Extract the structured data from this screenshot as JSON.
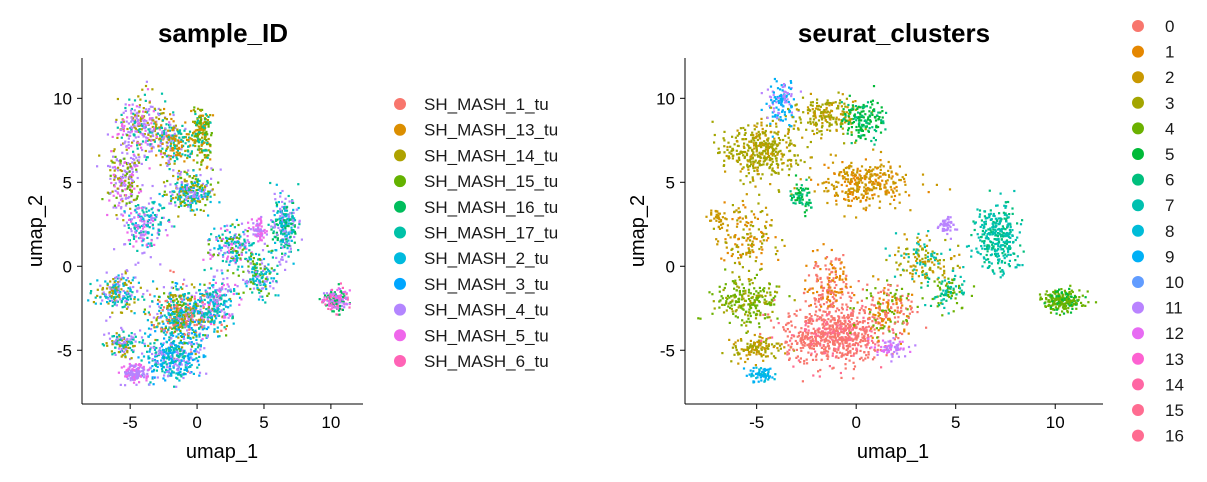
{
  "chart_data": [
    {
      "type": "scatter",
      "title": "sample_ID",
      "xlabel": "umap_1",
      "ylabel": "umap_2",
      "xlim": [
        -8.6,
        12.4
      ],
      "ylim": [
        -8.2,
        12.4
      ],
      "xticks": [
        -5,
        0,
        5,
        10
      ],
      "yticks": [
        -5,
        0,
        5,
        10
      ],
      "xtick_labels": [
        "-5",
        "0",
        "5",
        "10"
      ],
      "ytick_labels": [
        "-5",
        "0",
        "5",
        "10"
      ],
      "grid": false,
      "legend_position": "right",
      "legend": [
        {
          "label": "SH_MASH_1_tu",
          "color": "#F8766D"
        },
        {
          "label": "SH_MASH_13_tu",
          "color": "#DB8E00"
        },
        {
          "label": "SH_MASH_14_tu",
          "color": "#AEA200"
        },
        {
          "label": "SH_MASH_15_tu",
          "color": "#64B200"
        },
        {
          "label": "SH_MASH_16_tu",
          "color": "#00BD5C"
        },
        {
          "label": "SH_MASH_17_tu",
          "color": "#00C1A7"
        },
        {
          "label": "SH_MASH_2_tu",
          "color": "#00BADE"
        },
        {
          "label": "SH_MASH_3_tu",
          "color": "#00A6FF"
        },
        {
          "label": "SH_MASH_4_tu",
          "color": "#B385FF"
        },
        {
          "label": "SH_MASH_5_tu",
          "color": "#EF67EB"
        },
        {
          "label": "SH_MASH_6_tu",
          "color": "#FF63B6"
        }
      ],
      "regions": [
        {
          "x": -4.2,
          "y": 8.5,
          "sx": 1.6,
          "sy": 1.6,
          "w": 0.08,
          "colors": [
            8,
            8,
            9,
            2,
            5
          ]
        },
        {
          "x": -5.5,
          "y": 5.2,
          "sx": 1.2,
          "sy": 1.8,
          "w": 0.07,
          "colors": [
            8,
            8,
            2,
            3,
            9
          ]
        },
        {
          "x": -2.0,
          "y": 7.5,
          "sx": 1.3,
          "sy": 1.5,
          "w": 0.07,
          "colors": [
            8,
            2,
            5,
            1
          ]
        },
        {
          "x": 0.2,
          "y": 8.0,
          "sx": 0.8,
          "sy": 1.5,
          "w": 0.06,
          "colors": [
            2,
            3,
            1,
            5
          ]
        },
        {
          "x": -0.5,
          "y": 4.5,
          "sx": 1.6,
          "sy": 1.0,
          "w": 0.08,
          "colors": [
            5,
            8,
            6,
            3,
            2
          ]
        },
        {
          "x": -4.0,
          "y": 2.5,
          "sx": 1.4,
          "sy": 1.4,
          "w": 0.06,
          "colors": [
            8,
            6,
            5,
            9
          ]
        },
        {
          "x": 2.5,
          "y": 1.2,
          "sx": 1.5,
          "sy": 1.2,
          "w": 0.06,
          "colors": [
            5,
            8,
            6,
            9,
            3
          ]
        },
        {
          "x": 6.5,
          "y": 2.5,
          "sx": 1.0,
          "sy": 1.6,
          "w": 0.08,
          "colors": [
            5,
            6,
            8,
            4
          ]
        },
        {
          "x": 4.5,
          "y": -0.5,
          "sx": 1.3,
          "sy": 1.2,
          "w": 0.05,
          "colors": [
            5,
            8,
            6,
            3
          ]
        },
        {
          "x": 10.3,
          "y": -2.0,
          "sx": 0.9,
          "sy": 0.6,
          "w": 0.06,
          "colors": [
            9,
            10,
            8,
            4
          ]
        },
        {
          "x": -6.0,
          "y": -1.5,
          "sx": 1.3,
          "sy": 1.0,
          "w": 0.06,
          "colors": [
            8,
            6,
            5,
            2
          ]
        },
        {
          "x": -1.0,
          "y": -3.0,
          "sx": 2.2,
          "sy": 1.7,
          "w": 0.2,
          "colors": [
            6,
            5,
            8,
            0,
            2,
            3,
            7
          ]
        },
        {
          "x": -2.0,
          "y": -5.5,
          "sx": 1.8,
          "sy": 1.0,
          "w": 0.1,
          "colors": [
            6,
            7,
            5,
            8
          ]
        },
        {
          "x": -4.8,
          "y": -6.3,
          "sx": 0.9,
          "sy": 0.5,
          "w": 0.04,
          "colors": [
            8,
            9
          ]
        },
        {
          "x": -5.5,
          "y": -4.5,
          "sx": 1.0,
          "sy": 0.7,
          "w": 0.04,
          "colors": [
            8,
            2,
            5
          ]
        },
        {
          "x": 1.5,
          "y": -2.0,
          "sx": 1.2,
          "sy": 1.4,
          "w": 0.06,
          "colors": [
            5,
            6,
            9,
            8
          ]
        },
        {
          "x": 4.5,
          "y": 2.2,
          "sx": 0.5,
          "sy": 0.6,
          "w": 0.02,
          "colors": [
            8,
            9
          ]
        }
      ]
    },
    {
      "type": "scatter",
      "title": "seurat_clusters",
      "xlabel": "umap_1",
      "ylabel": "umap_2",
      "xlim": [
        -8.6,
        12.4
      ],
      "ylim": [
        -8.2,
        12.4
      ],
      "xticks": [
        -5,
        0,
        5,
        10
      ],
      "yticks": [
        -5,
        0,
        5,
        10
      ],
      "xtick_labels": [
        "-5",
        "0",
        "5",
        "10"
      ],
      "ytick_labels": [
        "-5",
        "0",
        "5",
        "10"
      ],
      "grid": false,
      "legend_position": "right",
      "legend": [
        {
          "label": "0",
          "color": "#F8766D"
        },
        {
          "label": "1",
          "color": "#E58700"
        },
        {
          "label": "2",
          "color": "#C99800"
        },
        {
          "label": "3",
          "color": "#A3A500"
        },
        {
          "label": "4",
          "color": "#6BB100"
        },
        {
          "label": "5",
          "color": "#00BA38"
        },
        {
          "label": "6",
          "color": "#00BF7D"
        },
        {
          "label": "7",
          "color": "#00C0AF"
        },
        {
          "label": "8",
          "color": "#00BCD8"
        },
        {
          "label": "9",
          "color": "#00B0F6"
        },
        {
          "label": "10",
          "color": "#619CFF"
        },
        {
          "label": "11",
          "color": "#B983FF"
        },
        {
          "label": "12",
          "color": "#E76BF3"
        },
        {
          "label": "13",
          "color": "#FD61D1"
        },
        {
          "label": "14",
          "color": "#FF67A4"
        },
        {
          "label": "15",
          "color": "#FF6C91"
        },
        {
          "label": "16",
          "color": "#FF6C91"
        }
      ],
      "regions": [
        {
          "x": -4.8,
          "y": 7.0,
          "sx": 1.8,
          "sy": 1.5,
          "w": 0.12,
          "colors": [
            3,
            3,
            3,
            2
          ]
        },
        {
          "x": -3.8,
          "y": 9.8,
          "sx": 0.6,
          "sy": 1.2,
          "w": 0.04,
          "colors": [
            9,
            9,
            11
          ]
        },
        {
          "x": -1.5,
          "y": 9.0,
          "sx": 1.5,
          "sy": 1.0,
          "w": 0.06,
          "colors": [
            3,
            3,
            2
          ]
        },
        {
          "x": 0.3,
          "y": 8.7,
          "sx": 1.0,
          "sy": 1.1,
          "w": 0.05,
          "colors": [
            5,
            5,
            6
          ]
        },
        {
          "x": 0.5,
          "y": 5.0,
          "sx": 2.0,
          "sy": 1.2,
          "w": 0.1,
          "colors": [
            2,
            2,
            1
          ]
        },
        {
          "x": -2.8,
          "y": 4.2,
          "sx": 0.6,
          "sy": 0.8,
          "w": 0.02,
          "colors": [
            5,
            6
          ]
        },
        {
          "x": -5.5,
          "y": 1.8,
          "sx": 1.2,
          "sy": 1.8,
          "w": 0.05,
          "colors": [
            1,
            3,
            2
          ]
        },
        {
          "x": -7.0,
          "y": 3.0,
          "sx": 0.4,
          "sy": 0.5,
          "w": 0.01,
          "colors": [
            2
          ]
        },
        {
          "x": 7.0,
          "y": 1.8,
          "sx": 1.0,
          "sy": 1.8,
          "w": 0.1,
          "colors": [
            7,
            7,
            6
          ]
        },
        {
          "x": 4.5,
          "y": 2.5,
          "sx": 0.4,
          "sy": 0.5,
          "w": 0.015,
          "colors": [
            11
          ]
        },
        {
          "x": 3.5,
          "y": 0.5,
          "sx": 1.5,
          "sy": 1.2,
          "w": 0.05,
          "colors": [
            2,
            3,
            7
          ]
        },
        {
          "x": 10.3,
          "y": -2.0,
          "sx": 0.9,
          "sy": 0.6,
          "w": 0.07,
          "colors": [
            4,
            4,
            5
          ]
        },
        {
          "x": -5.5,
          "y": -2.0,
          "sx": 1.4,
          "sy": 1.2,
          "w": 0.07,
          "colors": [
            4,
            3,
            4
          ]
        },
        {
          "x": -5.0,
          "y": -4.8,
          "sx": 1.1,
          "sy": 0.7,
          "w": 0.04,
          "colors": [
            3,
            2
          ]
        },
        {
          "x": -4.8,
          "y": -6.4,
          "sx": 0.6,
          "sy": 0.4,
          "w": 0.02,
          "colors": [
            9,
            8
          ]
        },
        {
          "x": -1.2,
          "y": -4.0,
          "sx": 2.2,
          "sy": 1.6,
          "w": 0.22,
          "colors": [
            0,
            0,
            0,
            0,
            16
          ]
        },
        {
          "x": -1.5,
          "y": -1.0,
          "sx": 1.0,
          "sy": 1.6,
          "w": 0.05,
          "colors": [
            1,
            0
          ]
        },
        {
          "x": 1.5,
          "y": -2.5,
          "sx": 1.2,
          "sy": 1.4,
          "w": 0.06,
          "colors": [
            1,
            0,
            4
          ]
        },
        {
          "x": 1.8,
          "y": -4.8,
          "sx": 0.8,
          "sy": 0.5,
          "w": 0.02,
          "colors": [
            11,
            12
          ]
        },
        {
          "x": 4.5,
          "y": -1.5,
          "sx": 1.0,
          "sy": 0.8,
          "w": 0.03,
          "colors": [
            4,
            6,
            7
          ]
        }
      ]
    }
  ]
}
